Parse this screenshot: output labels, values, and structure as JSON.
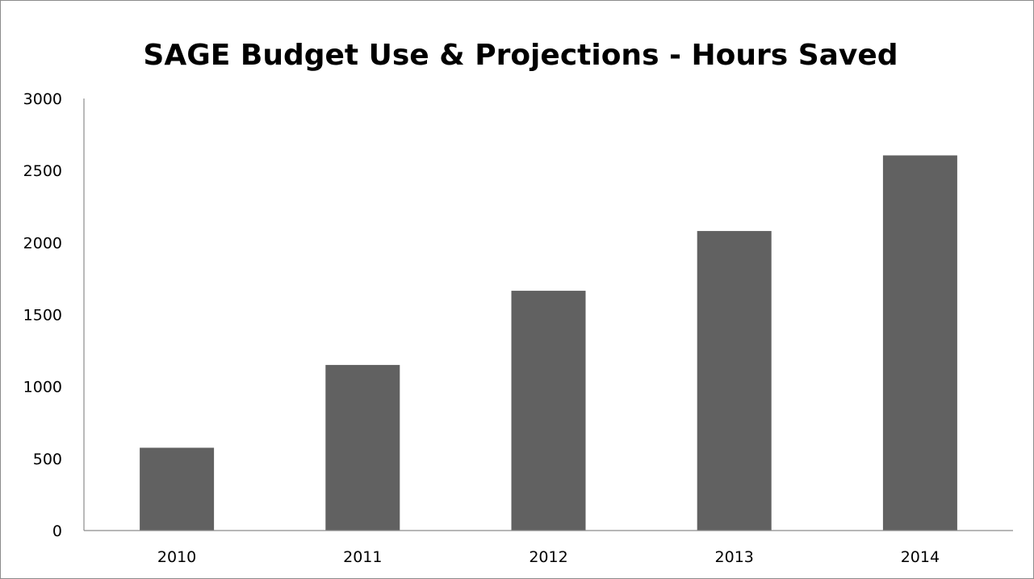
{
  "chart_data": {
    "type": "bar",
    "title": "SAGE Budget Use  & Projections - Hours Saved",
    "xlabel": "",
    "ylabel": "",
    "categories": [
      "2010",
      "2011",
      "2012",
      "2013",
      "2014"
    ],
    "values": [
      575,
      1150,
      1665,
      2080,
      2605
    ],
    "ylim": [
      0,
      3000
    ],
    "yticks": [
      "0",
      "500",
      "1000",
      "1500",
      "2000",
      "2500",
      "3000"
    ],
    "grid": false,
    "legend": "none",
    "colors": {
      "bar": "#616161",
      "axis": "#8c8c8c",
      "frame": "#8c8c8c"
    }
  }
}
